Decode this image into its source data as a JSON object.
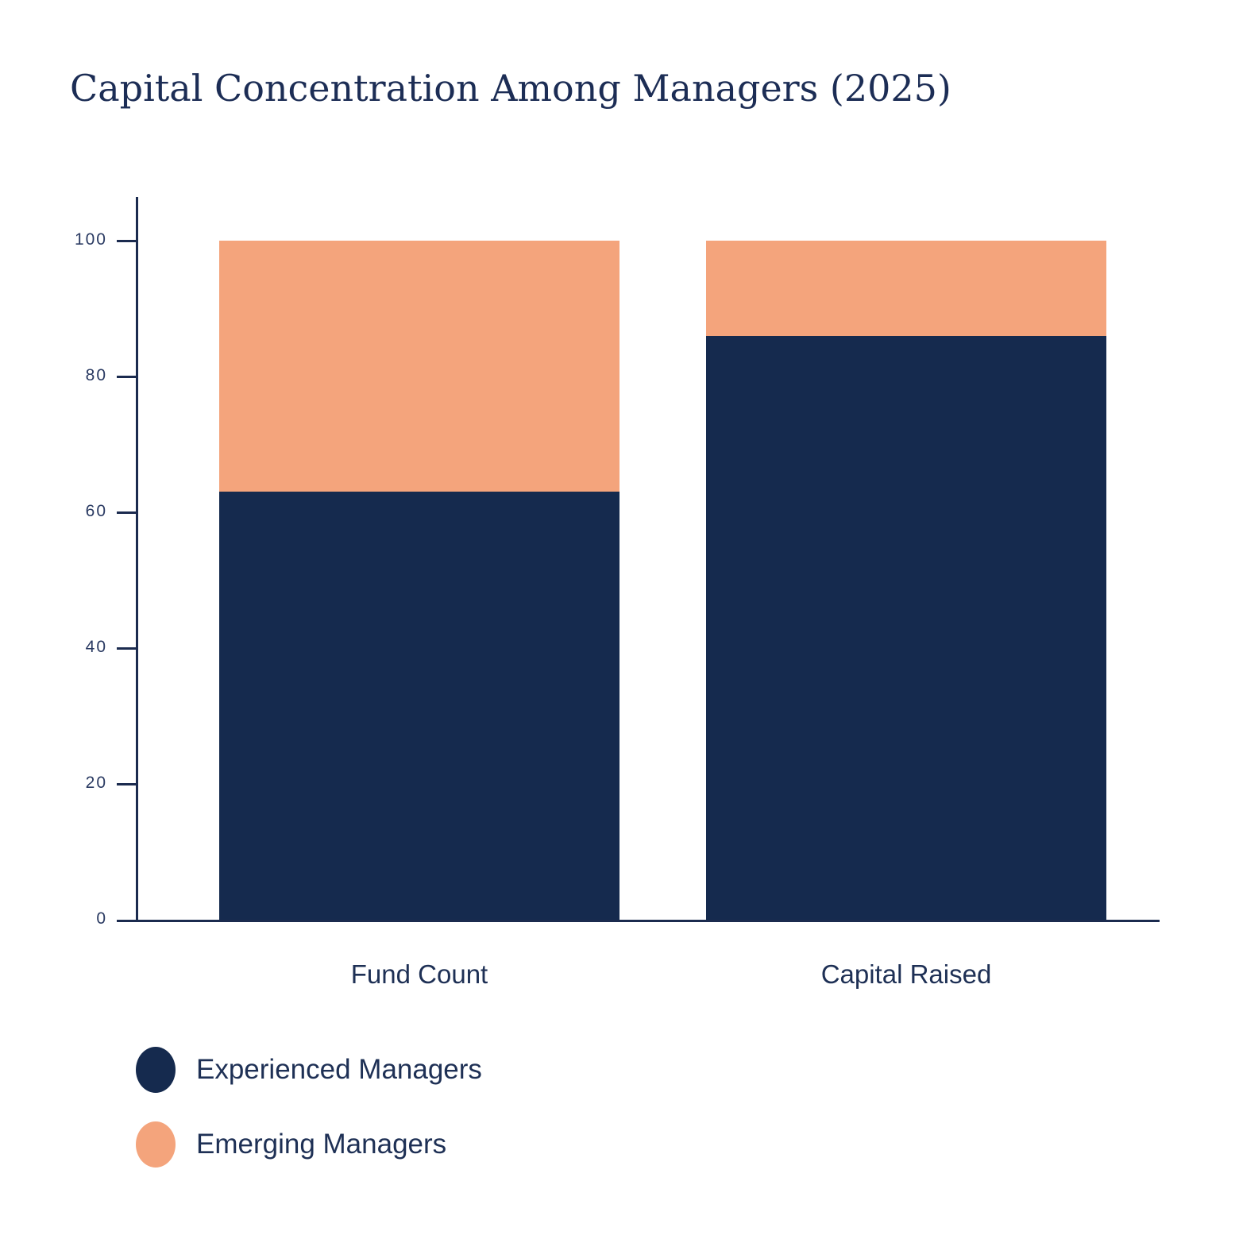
{
  "chart_data": {
    "type": "bar",
    "stacked": true,
    "title": "Capital Concentration Among Managers (2025)",
    "categories": [
      "Fund Count",
      "Capital Raised"
    ],
    "series": [
      {
        "name": "Experienced Managers",
        "color": "#152a4e",
        "values": [
          63,
          86
        ]
      },
      {
        "name": "Emerging Managers",
        "color": "#f4a47c",
        "values": [
          37,
          14
        ]
      }
    ],
    "xlabel": "",
    "ylabel": "",
    "ylim": [
      0,
      100
    ],
    "yticks": [
      0,
      20,
      40,
      60,
      80,
      100
    ],
    "grid": false,
    "legend_position": "bottom-left"
  },
  "colors": {
    "experienced_navy": "#152a4e",
    "emerging_orange": "#f4a47c",
    "axis_line": "#1b2b4f",
    "title_text": "#1c2d55",
    "label_text": "#1e3055",
    "tick_text": "#2a3a62",
    "background": "#ffffff"
  }
}
